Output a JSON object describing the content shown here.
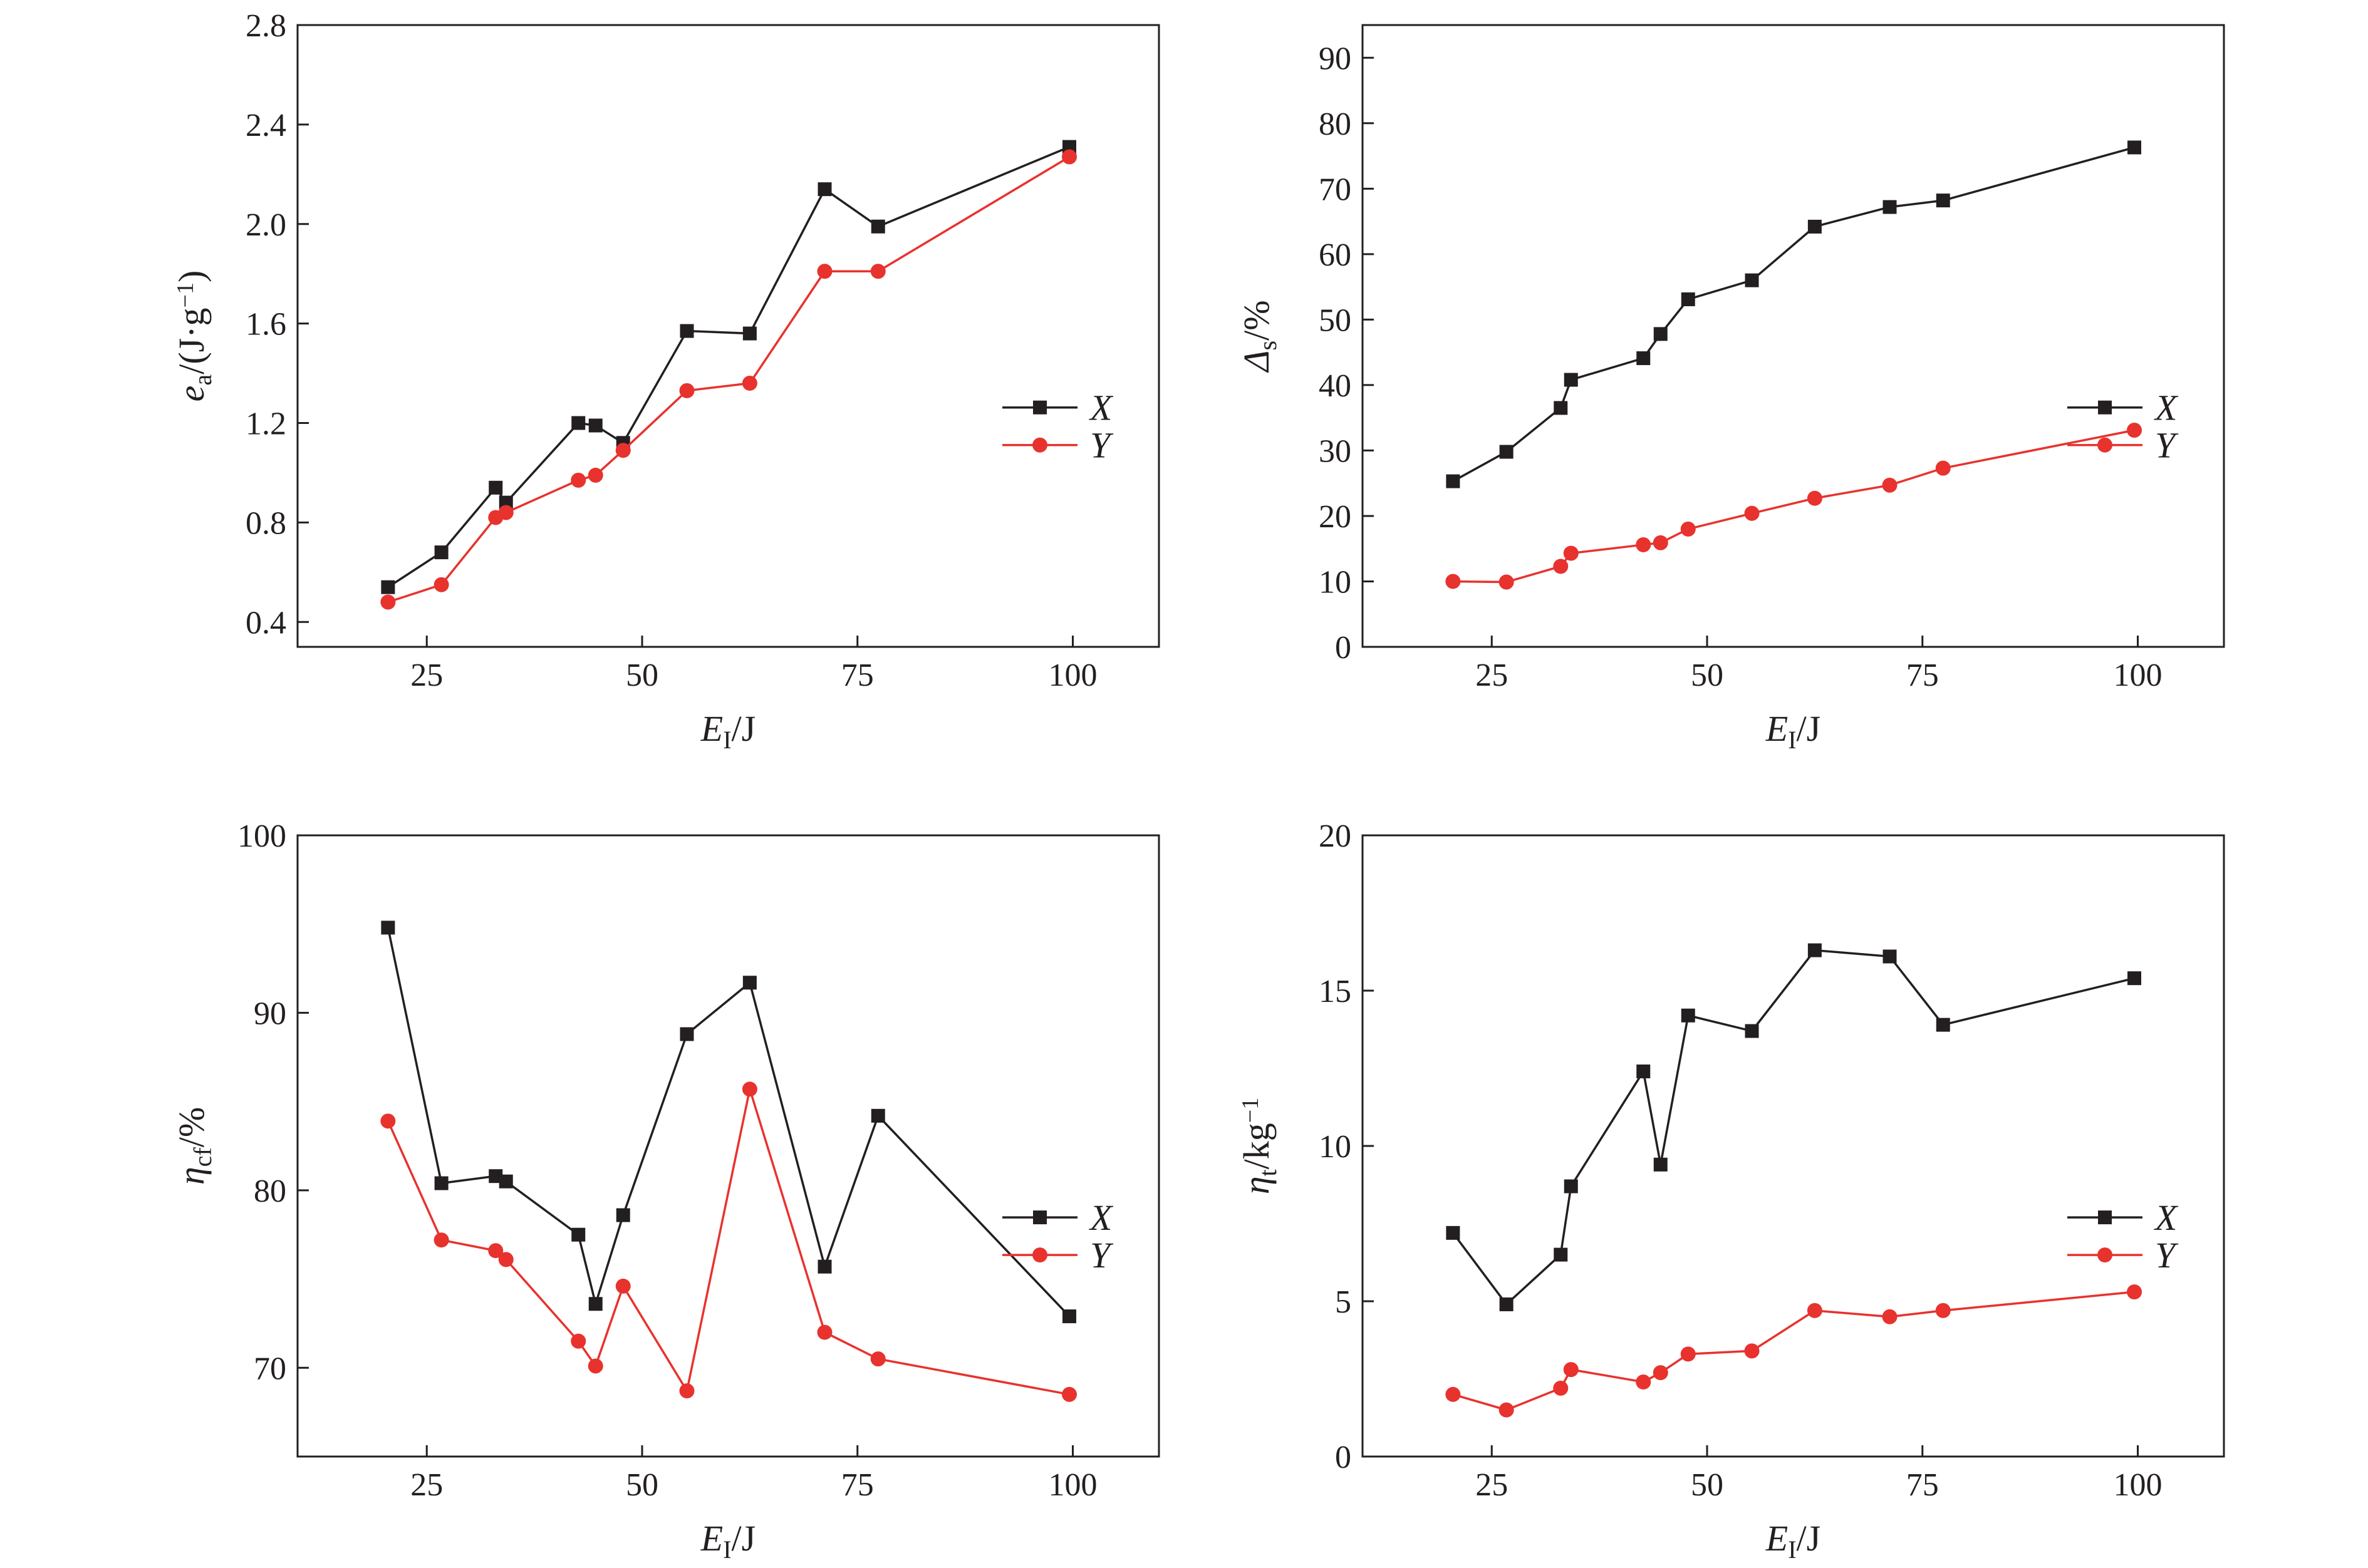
{
  "chart_data": [
    {
      "id": "ea",
      "type": "line",
      "ylabel": {
        "sym": "e",
        "sub": "a",
        "unit_pre": "/(J·g",
        "sup": "−1",
        "unit_post": ")"
      },
      "xlabel": {
        "sym": "E",
        "sub": "I",
        "unit_pre": "/J",
        "sup": "",
        "unit_post": ""
      },
      "xlim": [
        10,
        110
      ],
      "ylim": [
        0.3,
        2.8
      ],
      "xticks": [
        25,
        50,
        75,
        100
      ],
      "yticks": [
        0.4,
        0.8,
        1.2,
        1.6,
        2.0,
        2.4,
        2.8
      ],
      "ytick_labels": [
        "0.4",
        "0.8",
        "1.2",
        "1.6",
        "2.0",
        "2.4",
        "2.8"
      ],
      "legend_position": "center-right",
      "series": [
        {
          "name": "X",
          "color": "#231f20",
          "marker": "square",
          "x": [
            20.5,
            26.7,
            33.0,
            34.2,
            42.6,
            44.6,
            47.8,
            55.2,
            62.5,
            71.2,
            77.4,
            99.6
          ],
          "y": [
            0.54,
            0.68,
            0.94,
            0.88,
            1.2,
            1.19,
            1.12,
            1.57,
            1.56,
            2.14,
            1.99,
            2.31
          ]
        },
        {
          "name": "Y",
          "color": "#e8322e",
          "marker": "circle",
          "x": [
            20.5,
            26.7,
            33.0,
            34.2,
            42.6,
            44.6,
            47.8,
            55.2,
            62.5,
            71.2,
            77.4,
            99.6
          ],
          "y": [
            0.48,
            0.55,
            0.82,
            0.84,
            0.97,
            0.99,
            1.09,
            1.33,
            1.36,
            1.81,
            1.81,
            2.27
          ]
        }
      ]
    },
    {
      "id": "delta",
      "type": "line",
      "ylabel": {
        "sym": "Δ",
        "sub": "s",
        "unit_pre": "/%",
        "sup": "",
        "unit_post": ""
      },
      "xlabel": {
        "sym": "E",
        "sub": "I",
        "unit_pre": "/J",
        "sup": "",
        "unit_post": ""
      },
      "xlim": [
        10,
        110
      ],
      "ylim": [
        0,
        95
      ],
      "xticks": [
        25,
        50,
        75,
        100
      ],
      "yticks": [
        0,
        10,
        20,
        30,
        40,
        50,
        60,
        70,
        80,
        90
      ],
      "ytick_labels": [
        "0",
        "10",
        "20",
        "30",
        "40",
        "50",
        "60",
        "70",
        "80",
        "90"
      ],
      "legend_position": "center-right",
      "series": [
        {
          "name": "X",
          "color": "#231f20",
          "marker": "square",
          "x": [
            20.5,
            26.7,
            33.0,
            34.2,
            42.6,
            44.6,
            47.8,
            55.2,
            62.5,
            71.2,
            77.4,
            99.6
          ],
          "y": [
            25.3,
            29.8,
            36.5,
            40.8,
            44.1,
            47.8,
            53.1,
            56.0,
            64.2,
            67.2,
            68.2,
            76.3
          ]
        },
        {
          "name": "Y",
          "color": "#e8322e",
          "marker": "circle",
          "x": [
            20.5,
            26.7,
            33.0,
            34.2,
            42.6,
            44.6,
            47.8,
            55.2,
            62.5,
            71.2,
            77.4,
            99.6
          ],
          "y": [
            10.0,
            9.9,
            12.3,
            14.3,
            15.6,
            15.9,
            18.0,
            20.4,
            22.7,
            24.7,
            27.3,
            33.1
          ]
        }
      ]
    },
    {
      "id": "eta_cf",
      "type": "line",
      "ylabel": {
        "sym": "η",
        "sub": "cf",
        "unit_pre": "/%",
        "sup": "",
        "unit_post": ""
      },
      "xlabel": {
        "sym": "E",
        "sub": "I",
        "unit_pre": "/J",
        "sup": "",
        "unit_post": ""
      },
      "xlim": [
        10,
        110
      ],
      "ylim": [
        65,
        100
      ],
      "xticks": [
        25,
        50,
        75,
        100
      ],
      "yticks": [
        70,
        80,
        90,
        100
      ],
      "ytick_labels": [
        "70",
        "80",
        "90",
        "100"
      ],
      "legend_position": "center-right",
      "series": [
        {
          "name": "X",
          "color": "#231f20",
          "marker": "square",
          "x": [
            20.5,
            26.7,
            33.0,
            34.2,
            42.6,
            44.6,
            47.8,
            55.2,
            62.5,
            71.2,
            77.4,
            99.6
          ],
          "y": [
            94.8,
            80.4,
            80.8,
            80.5,
            77.5,
            73.6,
            78.6,
            88.8,
            91.7,
            75.7,
            84.2,
            72.9
          ]
        },
        {
          "name": "Y",
          "color": "#e8322e",
          "marker": "circle",
          "x": [
            20.5,
            26.7,
            33.0,
            34.2,
            42.6,
            44.6,
            47.8,
            55.2,
            62.5,
            71.2,
            77.4,
            99.6
          ],
          "y": [
            83.9,
            77.2,
            76.6,
            76.1,
            71.5,
            70.1,
            74.6,
            68.7,
            85.7,
            72.0,
            70.5,
            68.5
          ]
        }
      ]
    },
    {
      "id": "eta_t",
      "type": "line",
      "ylabel": {
        "sym": "η",
        "sub": "t",
        "unit_pre": "/kg",
        "sup": "−1",
        "unit_post": ""
      },
      "xlabel": {
        "sym": "E",
        "sub": "I",
        "unit_pre": "/J",
        "sup": "",
        "unit_post": ""
      },
      "xlim": [
        10,
        110
      ],
      "ylim": [
        0,
        20
      ],
      "xticks": [
        25,
        50,
        75,
        100
      ],
      "yticks": [
        0,
        5,
        10,
        15,
        20
      ],
      "ytick_labels": [
        "0",
        "5",
        "10",
        "15",
        "20"
      ],
      "legend_position": "center-right",
      "series": [
        {
          "name": "X",
          "color": "#231f20",
          "marker": "square",
          "x": [
            20.5,
            26.7,
            33.0,
            34.2,
            42.6,
            44.6,
            47.8,
            55.2,
            62.5,
            71.2,
            77.4,
            99.6
          ],
          "y": [
            7.2,
            4.9,
            6.5,
            8.7,
            12.4,
            9.4,
            14.2,
            13.7,
            16.3,
            16.1,
            13.9,
            15.4
          ]
        },
        {
          "name": "Y",
          "color": "#e8322e",
          "marker": "circle",
          "x": [
            20.5,
            26.7,
            33.0,
            34.2,
            42.6,
            44.6,
            47.8,
            55.2,
            62.5,
            71.2,
            77.4,
            99.6
          ],
          "y": [
            2.0,
            1.5,
            2.2,
            2.8,
            2.4,
            2.7,
            3.3,
            3.4,
            4.7,
            4.5,
            4.7,
            5.3
          ]
        }
      ]
    }
  ]
}
